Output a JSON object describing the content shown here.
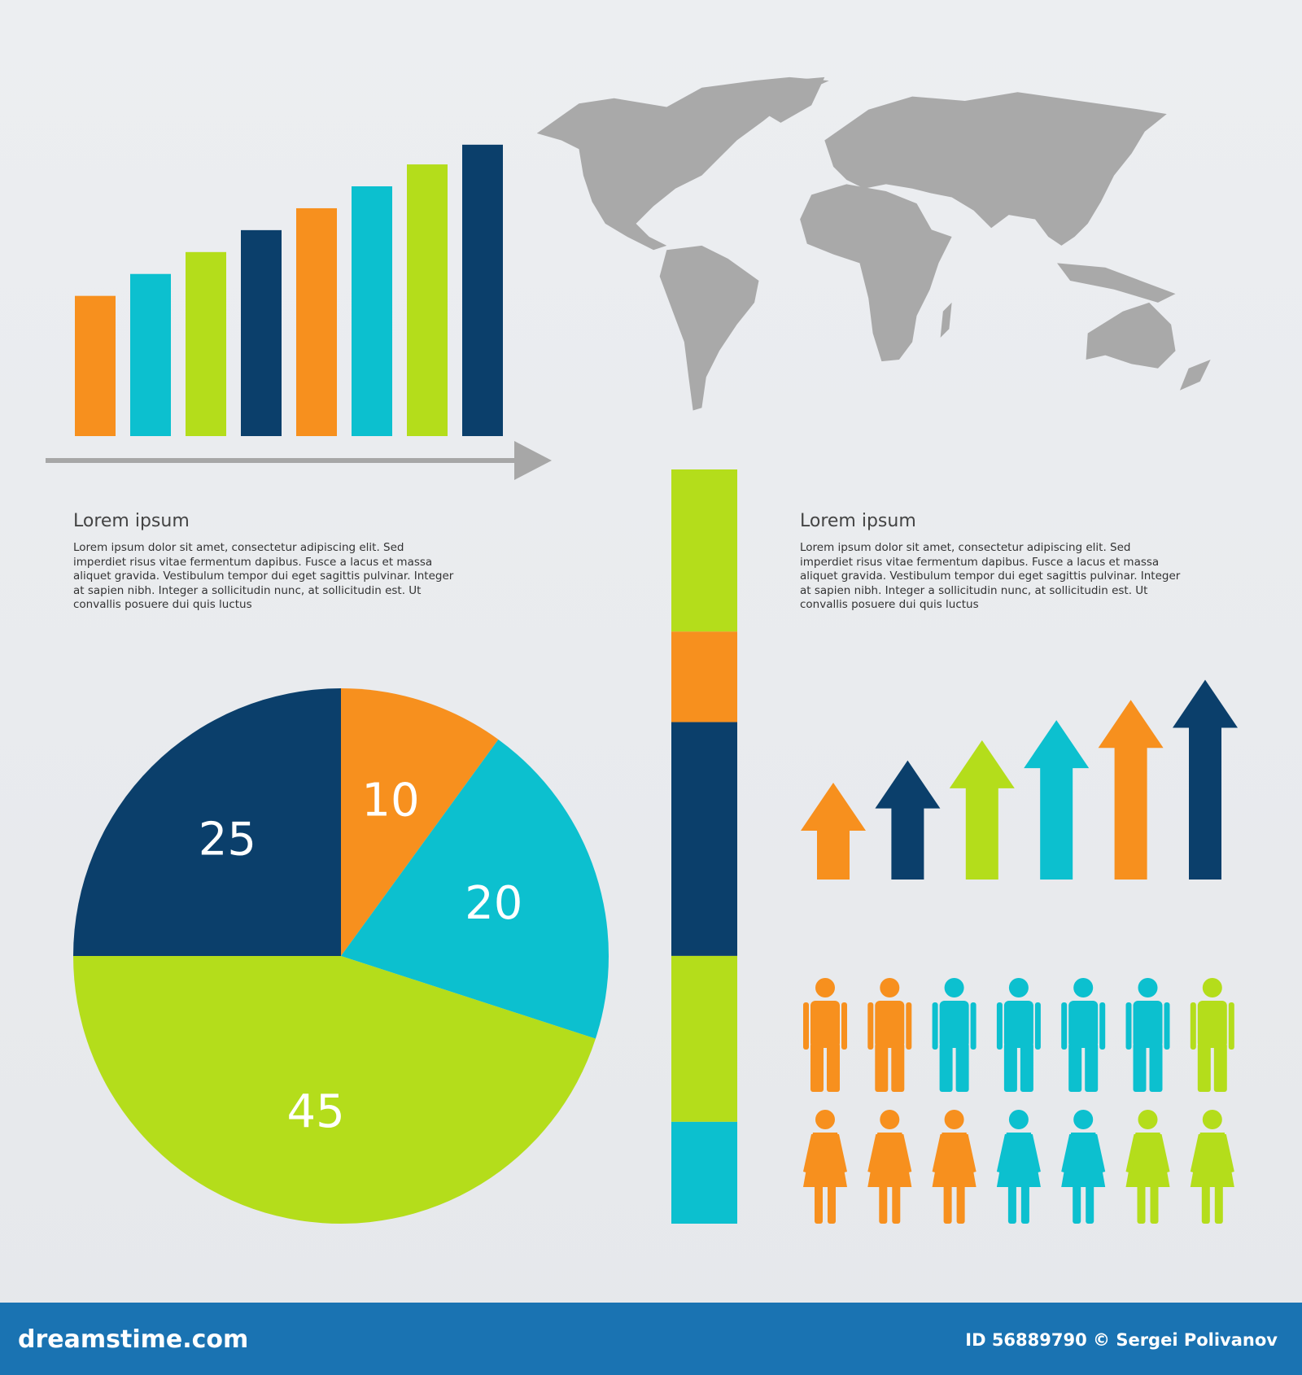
{
  "chart_data": [
    {
      "type": "bar",
      "values": [
        6.4,
        7.4,
        8.4,
        9.4,
        10.4,
        11.4,
        12.4,
        13.3
      ],
      "colors": [
        "#f7901e",
        "#0cc0cf",
        "#b4dd1b",
        "#0b3f6b",
        "#f7901e",
        "#0cc0cf",
        "#b4dd1b",
        "#0b3f6b"
      ],
      "ylim": [
        0,
        14
      ]
    },
    {
      "type": "pie",
      "values": [
        10,
        20,
        45,
        25
      ],
      "colors": [
        "#f7901e",
        "#0cc0cf",
        "#b4dd1b",
        "#0b3f6b"
      ]
    },
    {
      "type": "stacked_bar",
      "values": [
        21.5,
        12,
        31,
        22,
        13.5
      ],
      "colors": [
        "#b4dd1b",
        "#f7901e",
        "#0b3f6b",
        "#b4dd1b",
        "#0cc0cf"
      ]
    },
    {
      "type": "arrow",
      "values": [
        4.8,
        5.9,
        6.9,
        7.9,
        8.9,
        9.9
      ],
      "colors": [
        "#f7901e",
        "#0b3f6b",
        "#b4dd1b",
        "#0cc0cf",
        "#f7901e",
        "#0b3f6b"
      ],
      "ylim": [
        0,
        10
      ]
    },
    {
      "type": "pictogram",
      "rows": [
        {
          "icon": "man",
          "counts": [
            2,
            4,
            1
          ]
        },
        {
          "icon": "woman",
          "counts": [
            3,
            2,
            2
          ]
        }
      ],
      "colors": [
        "#f7901e",
        "#0cc0cf",
        "#b4dd1b"
      ]
    }
  ],
  "text_blocks": [
    {
      "title": "Lorem ipsum",
      "lines": [
        "Lorem ipsum dolor sit amet, consectetur adipiscing elit. Sed",
        "imperdiet risus vitae fermentum dapibus. Fusce a lacus et massa",
        "aliquet gravida. Vestibulum tempor dui eget sagittis pulvinar. Integer",
        "at sapien nibh. Integer a sollicitudin nunc, at sollicitudin est. Ut",
        "convallis posuere dui quis luctus"
      ]
    },
    {
      "title": "Lorem ipsum",
      "lines": [
        "Lorem ipsum dolor sit amet, consectetur adipiscing elit. Sed",
        "imperdiet risus vitae fermentum dapibus. Fusce a lacus et massa",
        "aliquet gravida. Vestibulum tempor dui eget sagittis pulvinar. Integer",
        "at sapien nibh. Integer a sollicitudin nunc, at sollicitudin est. Ut",
        "convallis posuere dui quis luctus"
      ]
    }
  ],
  "footer": {
    "site": "dreamstime.com",
    "credit": "ID 56889790 © Sergei Polivanov"
  }
}
